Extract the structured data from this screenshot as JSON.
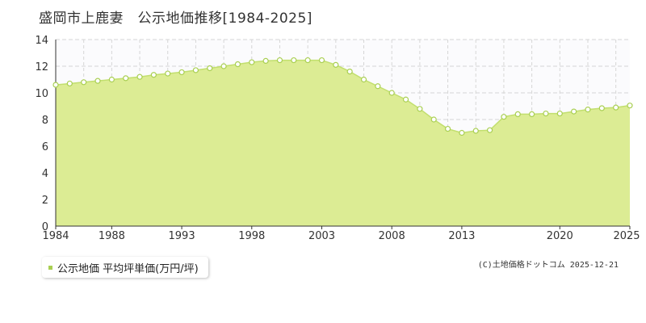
{
  "title": "盛岡市上鹿妻　公示地価推移[1984-2025]",
  "legend": {
    "label": "公示地価 平均坪単価(万円/坪)"
  },
  "credit": "(C)土地価格ドットコム 2025-12-21",
  "colors": {
    "fill": "#dcec94",
    "line": "#c2df6e",
    "marker_stroke": "#a9cf52",
    "marker_fill": "#ffffff",
    "legend_marker": "#a9cf52",
    "grid": "#d6d6d6",
    "plot_bg": "#fbfbfd",
    "axis": "#333333"
  },
  "chart_data": {
    "type": "area",
    "title": "盛岡市上鹿妻　公示地価推移[1984-2025]",
    "xlabel": "",
    "ylabel": "",
    "xlim": [
      1984,
      2025
    ],
    "ylim": [
      0,
      14
    ],
    "x_ticks": [
      1984,
      1988,
      1993,
      1998,
      2003,
      2008,
      2013,
      2020,
      2025
    ],
    "y_ticks": [
      0,
      2,
      4,
      6,
      8,
      10,
      12,
      14
    ],
    "grid": true,
    "legend_position": "bottom-left",
    "series": [
      {
        "name": "公示地価 平均坪単価(万円/坪)",
        "x": [
          1984,
          1985,
          1986,
          1987,
          1988,
          1989,
          1990,
          1991,
          1992,
          1993,
          1994,
          1995,
          1996,
          1997,
          1998,
          1999,
          2000,
          2001,
          2002,
          2003,
          2004,
          2005,
          2006,
          2007,
          2008,
          2009,
          2010,
          2011,
          2012,
          2013,
          2014,
          2015,
          2016,
          2017,
          2018,
          2019,
          2020,
          2021,
          2022,
          2023,
          2024,
          2025
        ],
        "values": [
          10.6,
          10.7,
          10.8,
          10.9,
          11.0,
          11.1,
          11.2,
          11.35,
          11.45,
          11.55,
          11.7,
          11.85,
          12.0,
          12.15,
          12.3,
          12.4,
          12.45,
          12.45,
          12.45,
          12.45,
          12.1,
          11.6,
          11.0,
          10.5,
          10.0,
          9.5,
          8.8,
          8.0,
          7.3,
          7.0,
          7.15,
          7.2,
          8.2,
          8.4,
          8.4,
          8.45,
          8.45,
          8.6,
          8.75,
          8.85,
          8.9,
          9.05
        ]
      }
    ]
  }
}
